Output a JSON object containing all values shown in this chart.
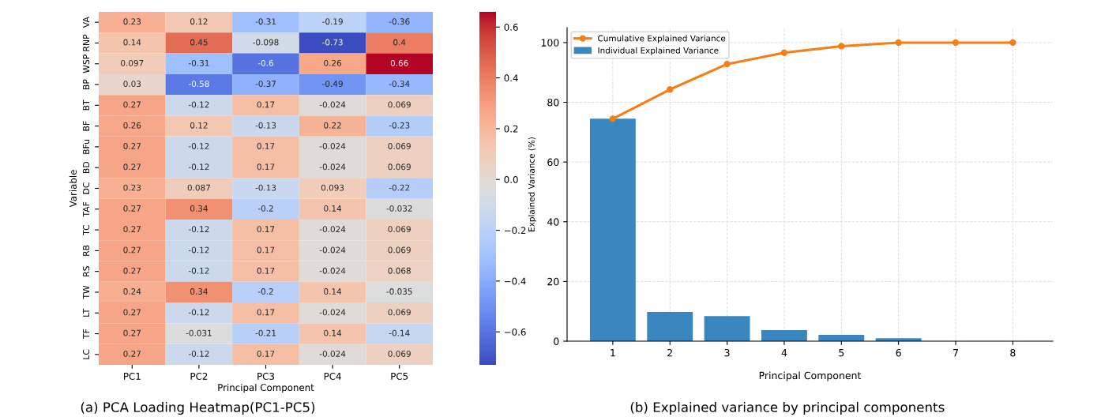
{
  "chart_data": [
    {
      "type": "heatmap",
      "title": "(a) PCA Loading Heatmap(PC1-PC5)",
      "xlabel": "Principal Component",
      "ylabel": "Variable",
      "categories": [
        "PC1",
        "PC2",
        "PC3",
        "PC4",
        "PC5"
      ],
      "y_categories": [
        "VA",
        "RNP",
        "WSP",
        "BP",
        "BT",
        "BF",
        "BFu",
        "BD",
        "DC",
        "TAF",
        "TC",
        "RB",
        "RS",
        "TW",
        "LT",
        "TF",
        "LC"
      ],
      "cells": [
        [
          0.23,
          0.12,
          -0.31,
          -0.19,
          -0.36
        ],
        [
          0.14,
          0.45,
          -0.098,
          -0.73,
          0.4
        ],
        [
          0.097,
          -0.31,
          -0.6,
          0.26,
          0.66
        ],
        [
          0.03,
          -0.58,
          -0.37,
          -0.49,
          -0.34
        ],
        [
          0.27,
          -0.12,
          0.17,
          -0.024,
          0.069
        ],
        [
          0.26,
          0.12,
          -0.13,
          0.22,
          -0.23
        ],
        [
          0.27,
          -0.12,
          0.17,
          -0.024,
          0.069
        ],
        [
          0.27,
          -0.12,
          0.17,
          -0.024,
          0.069
        ],
        [
          0.23,
          0.087,
          -0.13,
          0.093,
          -0.22
        ],
        [
          0.27,
          0.34,
          -0.2,
          0.14,
          -0.032
        ],
        [
          0.27,
          -0.12,
          0.17,
          -0.024,
          0.069
        ],
        [
          0.27,
          -0.12,
          0.17,
          -0.024,
          0.069
        ],
        [
          0.27,
          -0.12,
          0.17,
          -0.024,
          0.068
        ],
        [
          0.24,
          0.34,
          -0.2,
          0.14,
          -0.035
        ],
        [
          0.27,
          -0.12,
          0.17,
          -0.024,
          0.069
        ],
        [
          0.27,
          -0.031,
          -0.21,
          0.14,
          -0.14
        ],
        [
          0.27,
          -0.12,
          0.17,
          -0.024,
          0.069
        ]
      ],
      "data_labels": true,
      "clim": [
        -0.73,
        0.66
      ],
      "cticks": [
        {
          "value": -0.6,
          "label": "−0.6"
        },
        {
          "value": -0.4,
          "label": "−0.4"
        },
        {
          "value": -0.2,
          "label": "−0.2"
        },
        {
          "value": 0,
          "label": "0.0"
        },
        {
          "value": 0.2,
          "label": "0.2"
        },
        {
          "value": 0.4,
          "label": "0.4"
        },
        {
          "value": 0.6,
          "label": "0.6"
        }
      ]
    },
    {
      "type": "bar",
      "title": "(b) Explained variance by principal components",
      "xlabel": "Principal Component",
      "ylabel": "Explained Variance (%)",
      "categories": [
        "1",
        "2",
        "3",
        "4",
        "5",
        "6",
        "7",
        "8"
      ],
      "series": [
        {
          "name": "Cumulative Explained Variance",
          "type": "line",
          "color": "#f57f17",
          "values": [
            74.5,
            84.3,
            92.8,
            96.6,
            98.8,
            100,
            100,
            100
          ]
        },
        {
          "name": "Individual Explained Variance",
          "type": "bar",
          "color": "#3a87c0",
          "values": [
            74.5,
            9.8,
            8.4,
            3.7,
            2.1,
            1.0,
            0,
            0
          ]
        }
      ],
      "ylim": [
        0,
        105
      ],
      "yticks": [
        0,
        20,
        40,
        60,
        80,
        100
      ],
      "grid": true,
      "legend": "top left",
      "marker": "circle",
      "line_style": "solid"
    }
  ]
}
